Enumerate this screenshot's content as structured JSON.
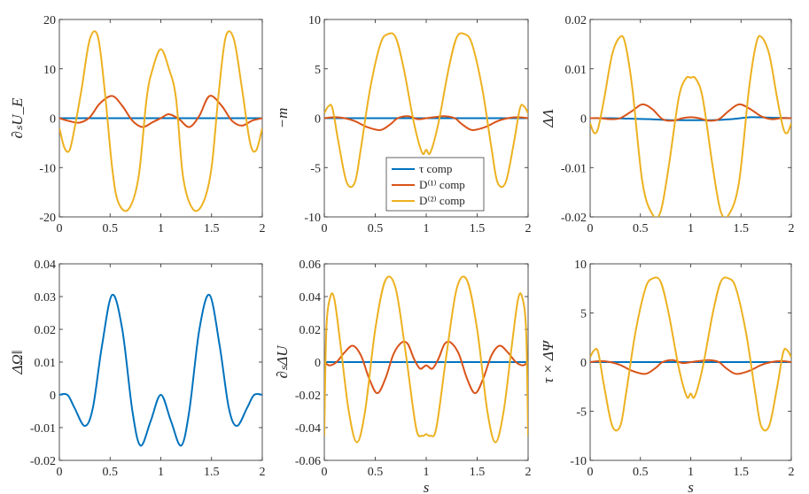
{
  "colors": {
    "tau": "#0072BD",
    "d1": "#D95319",
    "d2": "#EDB120"
  },
  "legend": [
    "τ comp",
    "D⁽¹⁾ comp",
    "D⁽²⁾ comp"
  ],
  "chart_data": [
    {
      "type": "line",
      "ylabel": "∂ₛU_E",
      "xlabel": "",
      "xlim": [
        0,
        2
      ],
      "ylim": [
        -20,
        20
      ],
      "xticks": [
        "0",
        "0.5",
        "1",
        "1.5",
        "2"
      ],
      "yticks": [
        "20",
        "10",
        "0",
        "-10",
        "-20"
      ],
      "series": [
        {
          "name": "τ comp",
          "color": "tau",
          "x": [
            0,
            1,
            2
          ],
          "y": [
            0,
            0,
            0
          ]
        },
        {
          "name": "D⁽¹⁾ comp",
          "color": "d1",
          "x": [
            0,
            0.1,
            0.2,
            0.3,
            0.4,
            0.52,
            0.62,
            0.72,
            0.82,
            0.92,
            1.0,
            1.08,
            1.18,
            1.28,
            1.38,
            1.48,
            1.6,
            1.7,
            1.8,
            1.9,
            2.0
          ],
          "y": [
            0,
            -0.6,
            -0.9,
            0.2,
            3.0,
            4.5,
            2.5,
            -0.5,
            -1.8,
            -0.8,
            0,
            0.8,
            -0.2,
            -1.8,
            0.5,
            4.5,
            2.5,
            -0.5,
            -1.5,
            -0.5,
            0
          ]
        },
        {
          "name": "D⁽²⁾ comp",
          "color": "d2",
          "x": [
            0,
            0.05,
            0.1,
            0.15,
            0.22,
            0.3,
            0.38,
            0.45,
            0.52,
            0.58,
            0.68,
            0.78,
            0.86,
            0.92,
            1.0,
            1.08,
            1.15,
            1.22,
            1.32,
            1.42,
            1.5,
            1.57,
            1.64,
            1.72,
            1.8,
            1.88,
            1.94,
            2.0
          ],
          "y": [
            -2,
            -6,
            -6.5,
            -2,
            6,
            16,
            16.5,
            5,
            -10,
            -17,
            -18.5,
            -12,
            4,
            10,
            14,
            10,
            4,
            -12,
            -18.5,
            -17,
            -10,
            5,
            16.5,
            16,
            6,
            -5,
            -6.5,
            -2
          ]
        }
      ]
    },
    {
      "type": "line",
      "ylabel": "−m",
      "xlabel": "",
      "xlim": [
        0,
        2
      ],
      "ylim": [
        -10,
        10
      ],
      "xticks": [
        "0",
        "0.5",
        "1",
        "1.5",
        "2"
      ],
      "yticks": [
        "10",
        "5",
        "0",
        "-5",
        "-10"
      ],
      "legend_position": "lower-center",
      "series": [
        {
          "name": "τ comp",
          "color": "tau",
          "x": [
            0,
            1,
            2
          ],
          "y": [
            0,
            0,
            0
          ]
        },
        {
          "name": "D⁽¹⁾ comp",
          "color": "d1",
          "x": [
            0,
            0.1,
            0.2,
            0.3,
            0.42,
            0.55,
            0.65,
            0.72,
            0.82,
            0.92,
            1.0,
            1.08,
            1.18,
            1.28,
            1.35,
            1.45,
            1.58,
            1.7,
            1.8,
            1.9,
            2.0
          ],
          "y": [
            0,
            0.1,
            0,
            -0.3,
            -0.9,
            -1.2,
            -0.6,
            0,
            0.2,
            -0.1,
            0,
            0.1,
            0.2,
            0,
            -0.6,
            -1.2,
            -0.9,
            -0.3,
            0,
            0.1,
            0
          ]
        },
        {
          "name": "D⁽²⁾ comp",
          "color": "d2",
          "x": [
            0,
            0.04,
            0.08,
            0.14,
            0.22,
            0.3,
            0.36,
            0.45,
            0.55,
            0.62,
            0.7,
            0.78,
            0.88,
            0.96,
            1.0,
            1.04,
            1.12,
            1.22,
            1.3,
            1.38,
            1.45,
            1.55,
            1.64,
            1.7,
            1.78,
            1.86,
            1.92,
            1.96,
            2.0
          ],
          "y": [
            0.5,
            1.2,
            1.0,
            -2.5,
            -6.5,
            -6.5,
            -3,
            3,
            7.5,
            8.5,
            8.2,
            5,
            -0.5,
            -3.5,
            -3.2,
            -3.5,
            -0.5,
            5,
            8.2,
            8.5,
            7.5,
            3,
            -3,
            -6.5,
            -6.5,
            -2.5,
            1.0,
            1.2,
            0.5
          ]
        }
      ]
    },
    {
      "type": "line",
      "ylabel": "ΔΛ",
      "xlabel": "",
      "xlim": [
        0,
        2
      ],
      "ylim": [
        -0.02,
        0.02
      ],
      "xticks": [
        "0",
        "0.5",
        "1",
        "1.5",
        "2"
      ],
      "yticks": [
        "0.02",
        "0.01",
        "0",
        "-0.01",
        "-0.02"
      ],
      "series": [
        {
          "name": "τ comp",
          "color": "tau",
          "x": [
            0,
            0.2,
            0.4,
            0.6,
            0.8,
            1.0,
            1.2,
            1.4,
            1.6,
            1.8,
            2.0
          ],
          "y": [
            0,
            0,
            -0.0001,
            -0.0002,
            -0.0004,
            -0.0004,
            -0.0004,
            -0.0002,
            0.0002,
            0.0001,
            0
          ]
        },
        {
          "name": "D⁽¹⁾ comp",
          "color": "d1",
          "x": [
            0,
            0.1,
            0.2,
            0.3,
            0.42,
            0.52,
            0.62,
            0.72,
            0.82,
            0.92,
            1.0,
            1.08,
            1.18,
            1.28,
            1.38,
            1.48,
            1.58,
            1.7,
            1.8,
            1.9,
            2.0
          ],
          "y": [
            0,
            0,
            -0.0002,
            0,
            0.0015,
            0.0028,
            0.0018,
            -0.0002,
            -0.0005,
            0,
            0.0002,
            0,
            -0.0005,
            -0.0002,
            0.0015,
            0.0028,
            0.002,
            0.0004,
            -0.0002,
            0,
            0
          ]
        },
        {
          "name": "D⁽²⁾ comp",
          "color": "d2",
          "x": [
            0,
            0.04,
            0.08,
            0.14,
            0.22,
            0.3,
            0.35,
            0.42,
            0.52,
            0.62,
            0.7,
            0.78,
            0.88,
            0.95,
            1.0,
            1.05,
            1.12,
            1.22,
            1.3,
            1.38,
            1.48,
            1.58,
            1.65,
            1.7,
            1.78,
            1.86,
            1.92,
            1.96,
            2.0
          ],
          "y": [
            -0.001,
            -0.003,
            -0.002,
            0.004,
            0.013,
            0.0165,
            0.015,
            0.006,
            -0.013,
            -0.0195,
            -0.019,
            -0.01,
            0.004,
            0.008,
            0.0082,
            0.008,
            0.004,
            -0.01,
            -0.019,
            -0.0195,
            -0.013,
            0.006,
            0.015,
            0.0165,
            0.013,
            0.004,
            -0.002,
            -0.003,
            -0.001
          ]
        }
      ]
    },
    {
      "type": "line",
      "ylabel": "ΔΩ‖",
      "xlabel": "",
      "xlim": [
        0,
        2
      ],
      "ylim": [
        -0.02,
        0.04
      ],
      "xticks": [
        "0",
        "0.5",
        "1",
        "1.5",
        "2"
      ],
      "yticks": [
        "0.04",
        "0.03",
        "0.02",
        "0.01",
        "0",
        "-0.01",
        "-0.02"
      ],
      "series": [
        {
          "name": "τ comp",
          "color": "tau",
          "x": [
            0,
            0.08,
            0.15,
            0.25,
            0.33,
            0.42,
            0.52,
            0.62,
            0.72,
            0.8,
            0.9,
            1.0,
            1.1,
            1.2,
            1.28,
            1.38,
            1.48,
            1.58,
            1.67,
            1.75,
            1.85,
            1.92,
            2.0
          ],
          "y": [
            0,
            0,
            -0.004,
            -0.0095,
            -0.004,
            0.015,
            0.0305,
            0.02,
            -0.005,
            -0.0155,
            -0.008,
            0,
            -0.008,
            -0.0155,
            -0.005,
            0.02,
            0.0305,
            0.015,
            -0.004,
            -0.0095,
            -0.004,
            0,
            0
          ]
        }
      ]
    },
    {
      "type": "line",
      "ylabel": "∂ₛΔU",
      "xlabel": "s",
      "xlim": [
        0,
        2
      ],
      "ylim": [
        -0.06,
        0.06
      ],
      "xticks": [
        "0",
        "0.5",
        "1",
        "1.5",
        "2"
      ],
      "yticks": [
        "0.06",
        "0.04",
        "0.02",
        "0",
        "-0.02",
        "-0.04",
        "-0.06"
      ],
      "series": [
        {
          "name": "τ comp",
          "color": "tau",
          "x": [
            0,
            1,
            2
          ],
          "y": [
            0,
            0,
            0
          ]
        },
        {
          "name": "D⁽¹⁾ comp",
          "color": "d1",
          "x": [
            0,
            0.05,
            0.12,
            0.2,
            0.28,
            0.36,
            0.44,
            0.52,
            0.6,
            0.68,
            0.76,
            0.82,
            0.88,
            0.94,
            1.0,
            1.06,
            1.12,
            1.18,
            1.24,
            1.32,
            1.4,
            1.48,
            1.56,
            1.64,
            1.72,
            1.8,
            1.88,
            1.95,
            2.0
          ],
          "y": [
            0,
            -0.002,
            0,
            0.006,
            0.01,
            0.004,
            -0.01,
            -0.019,
            -0.01,
            0.005,
            0.012,
            0.011,
            0.002,
            -0.004,
            -0.002,
            -0.004,
            0.002,
            0.011,
            0.012,
            0.005,
            -0.01,
            -0.019,
            -0.01,
            0.004,
            0.01,
            0.006,
            0,
            -0.002,
            0
          ]
        },
        {
          "name": "D⁽²⁾ comp",
          "color": "d2",
          "x": [
            0,
            0.02,
            0.06,
            0.1,
            0.16,
            0.24,
            0.32,
            0.4,
            0.5,
            0.6,
            0.7,
            0.8,
            0.9,
            0.96,
            1.0,
            1.04,
            1.1,
            1.2,
            1.3,
            1.4,
            1.5,
            1.6,
            1.68,
            1.76,
            1.84,
            1.9,
            1.94,
            1.98,
            2.0
          ],
          "y": [
            -0.045,
            0.02,
            0.04,
            0.038,
            0.01,
            -0.03,
            -0.049,
            -0.03,
            0.02,
            0.05,
            0.045,
            0.005,
            -0.04,
            -0.045,
            -0.044,
            -0.045,
            -0.04,
            0.005,
            0.045,
            0.05,
            0.02,
            -0.03,
            -0.049,
            -0.03,
            0.01,
            0.038,
            0.04,
            0.02,
            -0.045
          ]
        }
      ]
    },
    {
      "type": "line",
      "ylabel": "τ × ΔΨ",
      "xlabel": "s",
      "xlim": [
        0,
        2
      ],
      "ylim": [
        -10,
        10
      ],
      "xticks": [
        "0",
        "0.5",
        "1",
        "1.5",
        "2"
      ],
      "yticks": [
        "10",
        "5",
        "0",
        "-5",
        "-10"
      ],
      "series": [
        {
          "name": "τ comp",
          "color": "tau",
          "x": [
            0,
            1,
            2
          ],
          "y": [
            0,
            0,
            0
          ]
        },
        {
          "name": "D⁽¹⁾ comp",
          "color": "d1",
          "x": [
            0,
            0.1,
            0.2,
            0.3,
            0.42,
            0.55,
            0.65,
            0.72,
            0.82,
            0.92,
            1.0,
            1.08,
            1.18,
            1.28,
            1.35,
            1.45,
            1.58,
            1.7,
            1.8,
            1.9,
            2.0
          ],
          "y": [
            0,
            0.1,
            0,
            -0.3,
            -0.9,
            -1.2,
            -0.6,
            0,
            0.2,
            -0.1,
            0,
            0.1,
            0.2,
            0,
            -0.6,
            -1.2,
            -0.9,
            -0.3,
            0,
            0.1,
            0
          ]
        },
        {
          "name": "D⁽²⁾ comp",
          "color": "d2",
          "x": [
            0,
            0.04,
            0.08,
            0.14,
            0.22,
            0.3,
            0.36,
            0.45,
            0.55,
            0.62,
            0.7,
            0.78,
            0.88,
            0.96,
            1.0,
            1.04,
            1.12,
            1.22,
            1.3,
            1.38,
            1.45,
            1.55,
            1.64,
            1.7,
            1.78,
            1.86,
            1.92,
            1.96,
            2.0
          ],
          "y": [
            0.5,
            1.2,
            1.0,
            -2.5,
            -6.5,
            -6.5,
            -3,
            3,
            7.5,
            8.5,
            8.2,
            5,
            -0.5,
            -3.5,
            -3.2,
            -3.5,
            -0.5,
            5,
            8.2,
            8.5,
            7.5,
            3,
            -3,
            -6.5,
            -6.5,
            -2.5,
            1.0,
            1.2,
            0.5
          ]
        }
      ]
    }
  ]
}
